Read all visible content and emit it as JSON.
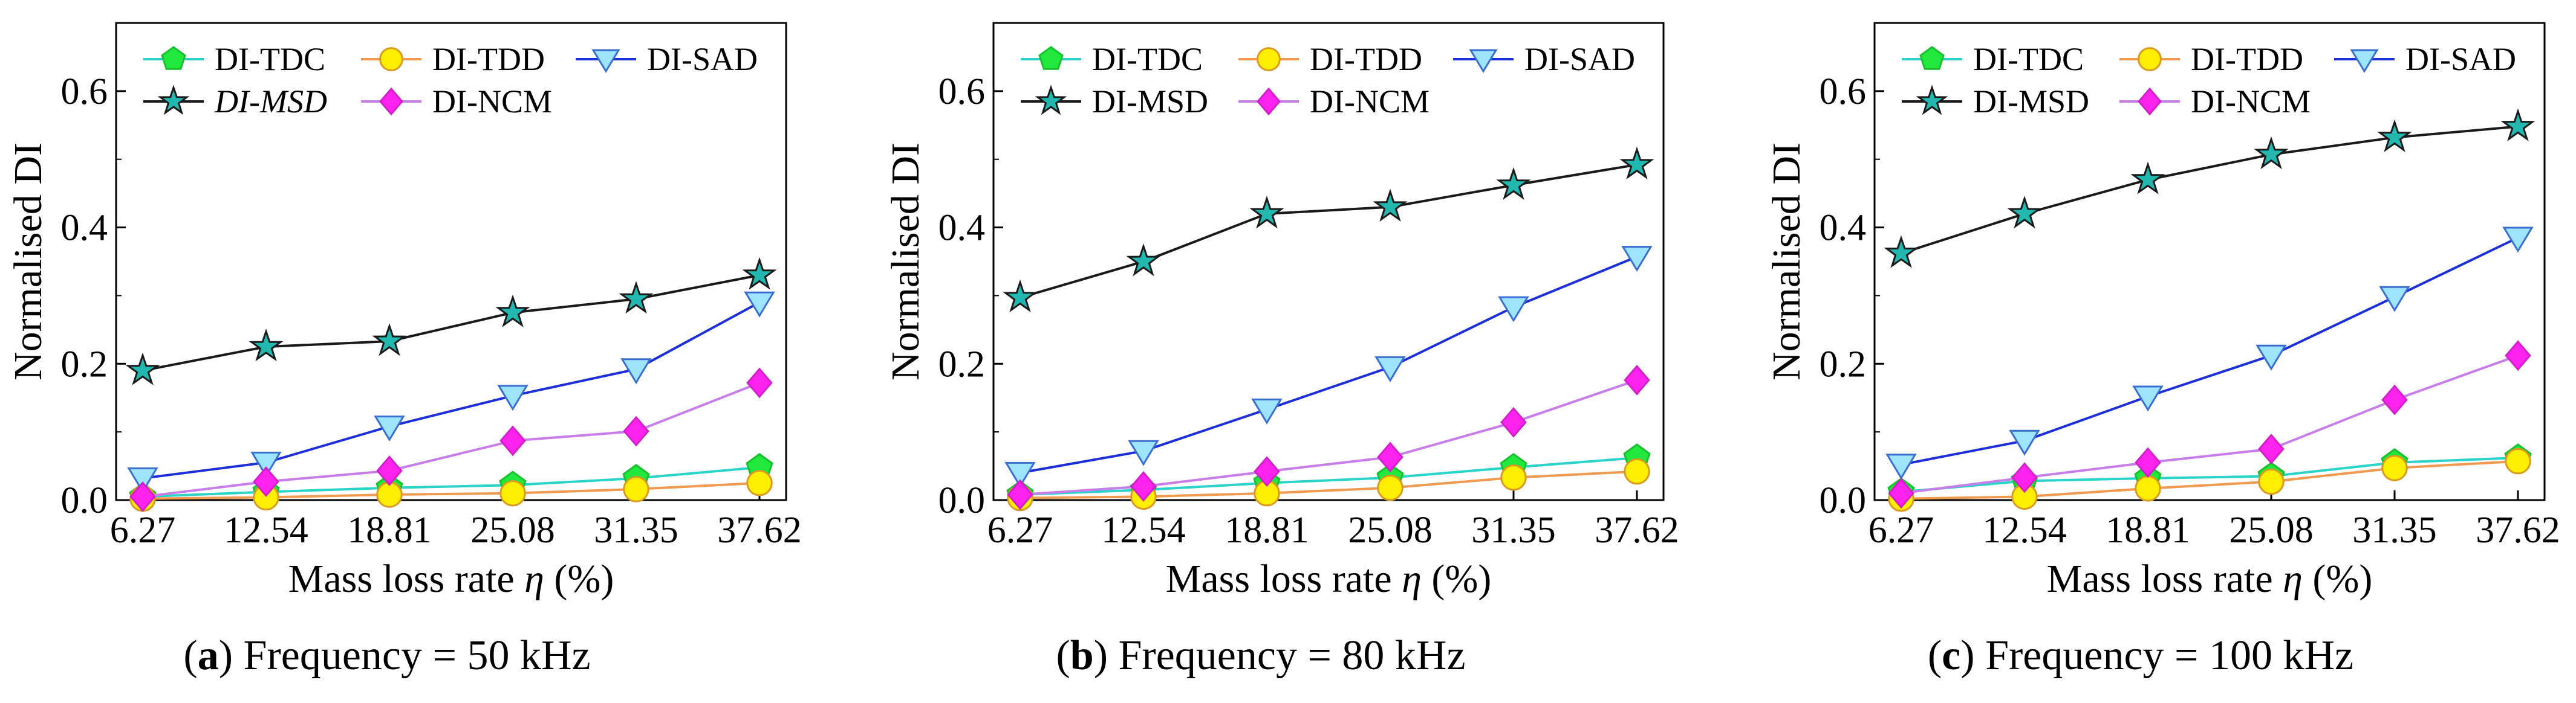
{
  "chart_data": [
    {
      "type": "line",
      "panel_label": "a",
      "caption": "Frequency = 50 kHz",
      "xlabel_prefix": "Mass loss rate ",
      "xlabel_symbol": "η",
      "xlabel_suffix": " (%)",
      "ylabel": "Normalised DI",
      "categories": [
        "6.27",
        "12.54",
        "18.81",
        "25.08",
        "31.35",
        "37.62"
      ],
      "ylim": [
        0,
        0.7
      ],
      "yticks": [
        "0.0",
        "0.2",
        "0.4",
        "0.6"
      ],
      "legend_position": "top-left",
      "series": [
        {
          "name": "DI-TDC",
          "color": "#2ad4c8",
          "marker": "pentagon",
          "marker_fill": "#20e83c",
          "italic": false,
          "values": [
            0.005,
            0.012,
            0.018,
            0.022,
            0.032,
            0.048
          ]
        },
        {
          "name": "DI-TDD",
          "color": "#f09a50",
          "marker": "circle",
          "marker_fill": "#ffee00",
          "italic": false,
          "values": [
            0.002,
            0.004,
            0.008,
            0.01,
            0.016,
            0.025
          ]
        },
        {
          "name": "DI-SAD",
          "color": "#1c2fd8",
          "marker": "triangle-down",
          "marker_fill": "#9ee4ff",
          "italic": false,
          "values": [
            0.032,
            0.055,
            0.108,
            0.153,
            0.192,
            0.29
          ]
        },
        {
          "name": "DI-MSD",
          "color": "#1a1a1a",
          "marker": "star",
          "marker_fill": "#22b8b0",
          "italic": true,
          "values": [
            0.19,
            0.225,
            0.233,
            0.275,
            0.295,
            0.33
          ]
        },
        {
          "name": "DI-NCM",
          "color": "#c77ee8",
          "marker": "diamond",
          "marker_fill": "#ff22ee",
          "italic": false,
          "values": [
            0.005,
            0.027,
            0.043,
            0.087,
            0.101,
            0.172
          ]
        }
      ]
    },
    {
      "type": "line",
      "panel_label": "b",
      "caption": "Frequency = 80 kHz",
      "xlabel_prefix": "Mass loss rate ",
      "xlabel_symbol": "η",
      "xlabel_suffix": " (%)",
      "ylabel": "Normalised DI",
      "categories": [
        "6.27",
        "12.54",
        "18.81",
        "25.08",
        "31.35",
        "37.62"
      ],
      "ylim": [
        0,
        0.7
      ],
      "yticks": [
        "0.0",
        "0.2",
        "0.4",
        "0.6"
      ],
      "legend_position": "top-left",
      "series": [
        {
          "name": "DI-TDC",
          "color": "#2ad4c8",
          "marker": "pentagon",
          "marker_fill": "#20e83c",
          "italic": false,
          "values": [
            0.008,
            0.015,
            0.025,
            0.033,
            0.048,
            0.062
          ]
        },
        {
          "name": "DI-TDD",
          "color": "#f09a50",
          "marker": "circle",
          "marker_fill": "#ffee00",
          "italic": false,
          "values": [
            0.003,
            0.005,
            0.01,
            0.018,
            0.033,
            0.042
          ]
        },
        {
          "name": "DI-SAD",
          "color": "#1c2fd8",
          "marker": "triangle-down",
          "marker_fill": "#9ee4ff",
          "italic": false,
          "values": [
            0.04,
            0.072,
            0.133,
            0.195,
            0.283,
            0.357
          ]
        },
        {
          "name": "DI-MSD",
          "color": "#1a1a1a",
          "marker": "star",
          "marker_fill": "#22b8b0",
          "italic": false,
          "values": [
            0.297,
            0.35,
            0.42,
            0.43,
            0.462,
            0.492
          ]
        },
        {
          "name": "DI-NCM",
          "color": "#c77ee8",
          "marker": "diamond",
          "marker_fill": "#ff22ee",
          "italic": false,
          "values": [
            0.008,
            0.02,
            0.042,
            0.063,
            0.114,
            0.176
          ]
        }
      ]
    },
    {
      "type": "line",
      "panel_label": "c",
      "caption": "Frequency = 100 kHz",
      "xlabel_prefix": "Mass loss rate ",
      "xlabel_symbol": "η",
      "xlabel_suffix": " (%)",
      "ylabel": "Normalised DI",
      "categories": [
        "6.27",
        "12.54",
        "18.81",
        "25.08",
        "31.35",
        "37.62"
      ],
      "ylim": [
        0,
        0.7
      ],
      "yticks": [
        "0.0",
        "0.2",
        "0.4",
        "0.6"
      ],
      "legend_position": "top-left",
      "series": [
        {
          "name": "DI-TDC",
          "color": "#2ad4c8",
          "marker": "pentagon",
          "marker_fill": "#20e83c",
          "italic": false,
          "values": [
            0.012,
            0.028,
            0.032,
            0.035,
            0.055,
            0.062
          ]
        },
        {
          "name": "DI-TDD",
          "color": "#f09a50",
          "marker": "circle",
          "marker_fill": "#ffee00",
          "italic": false,
          "values": [
            0.002,
            0.005,
            0.017,
            0.027,
            0.047,
            0.057
          ]
        },
        {
          "name": "DI-SAD",
          "color": "#1c2fd8",
          "marker": "triangle-down",
          "marker_fill": "#9ee4ff",
          "italic": false,
          "values": [
            0.052,
            0.087,
            0.152,
            0.212,
            0.298,
            0.385
          ]
        },
        {
          "name": "DI-MSD",
          "color": "#1a1a1a",
          "marker": "star",
          "marker_fill": "#22b8b0",
          "italic": false,
          "values": [
            0.362,
            0.42,
            0.47,
            0.507,
            0.532,
            0.548
          ]
        },
        {
          "name": "DI-NCM",
          "color": "#c77ee8",
          "marker": "diamond",
          "marker_fill": "#ff22ee",
          "italic": false,
          "values": [
            0.01,
            0.033,
            0.055,
            0.075,
            0.147,
            0.212
          ]
        }
      ]
    }
  ]
}
